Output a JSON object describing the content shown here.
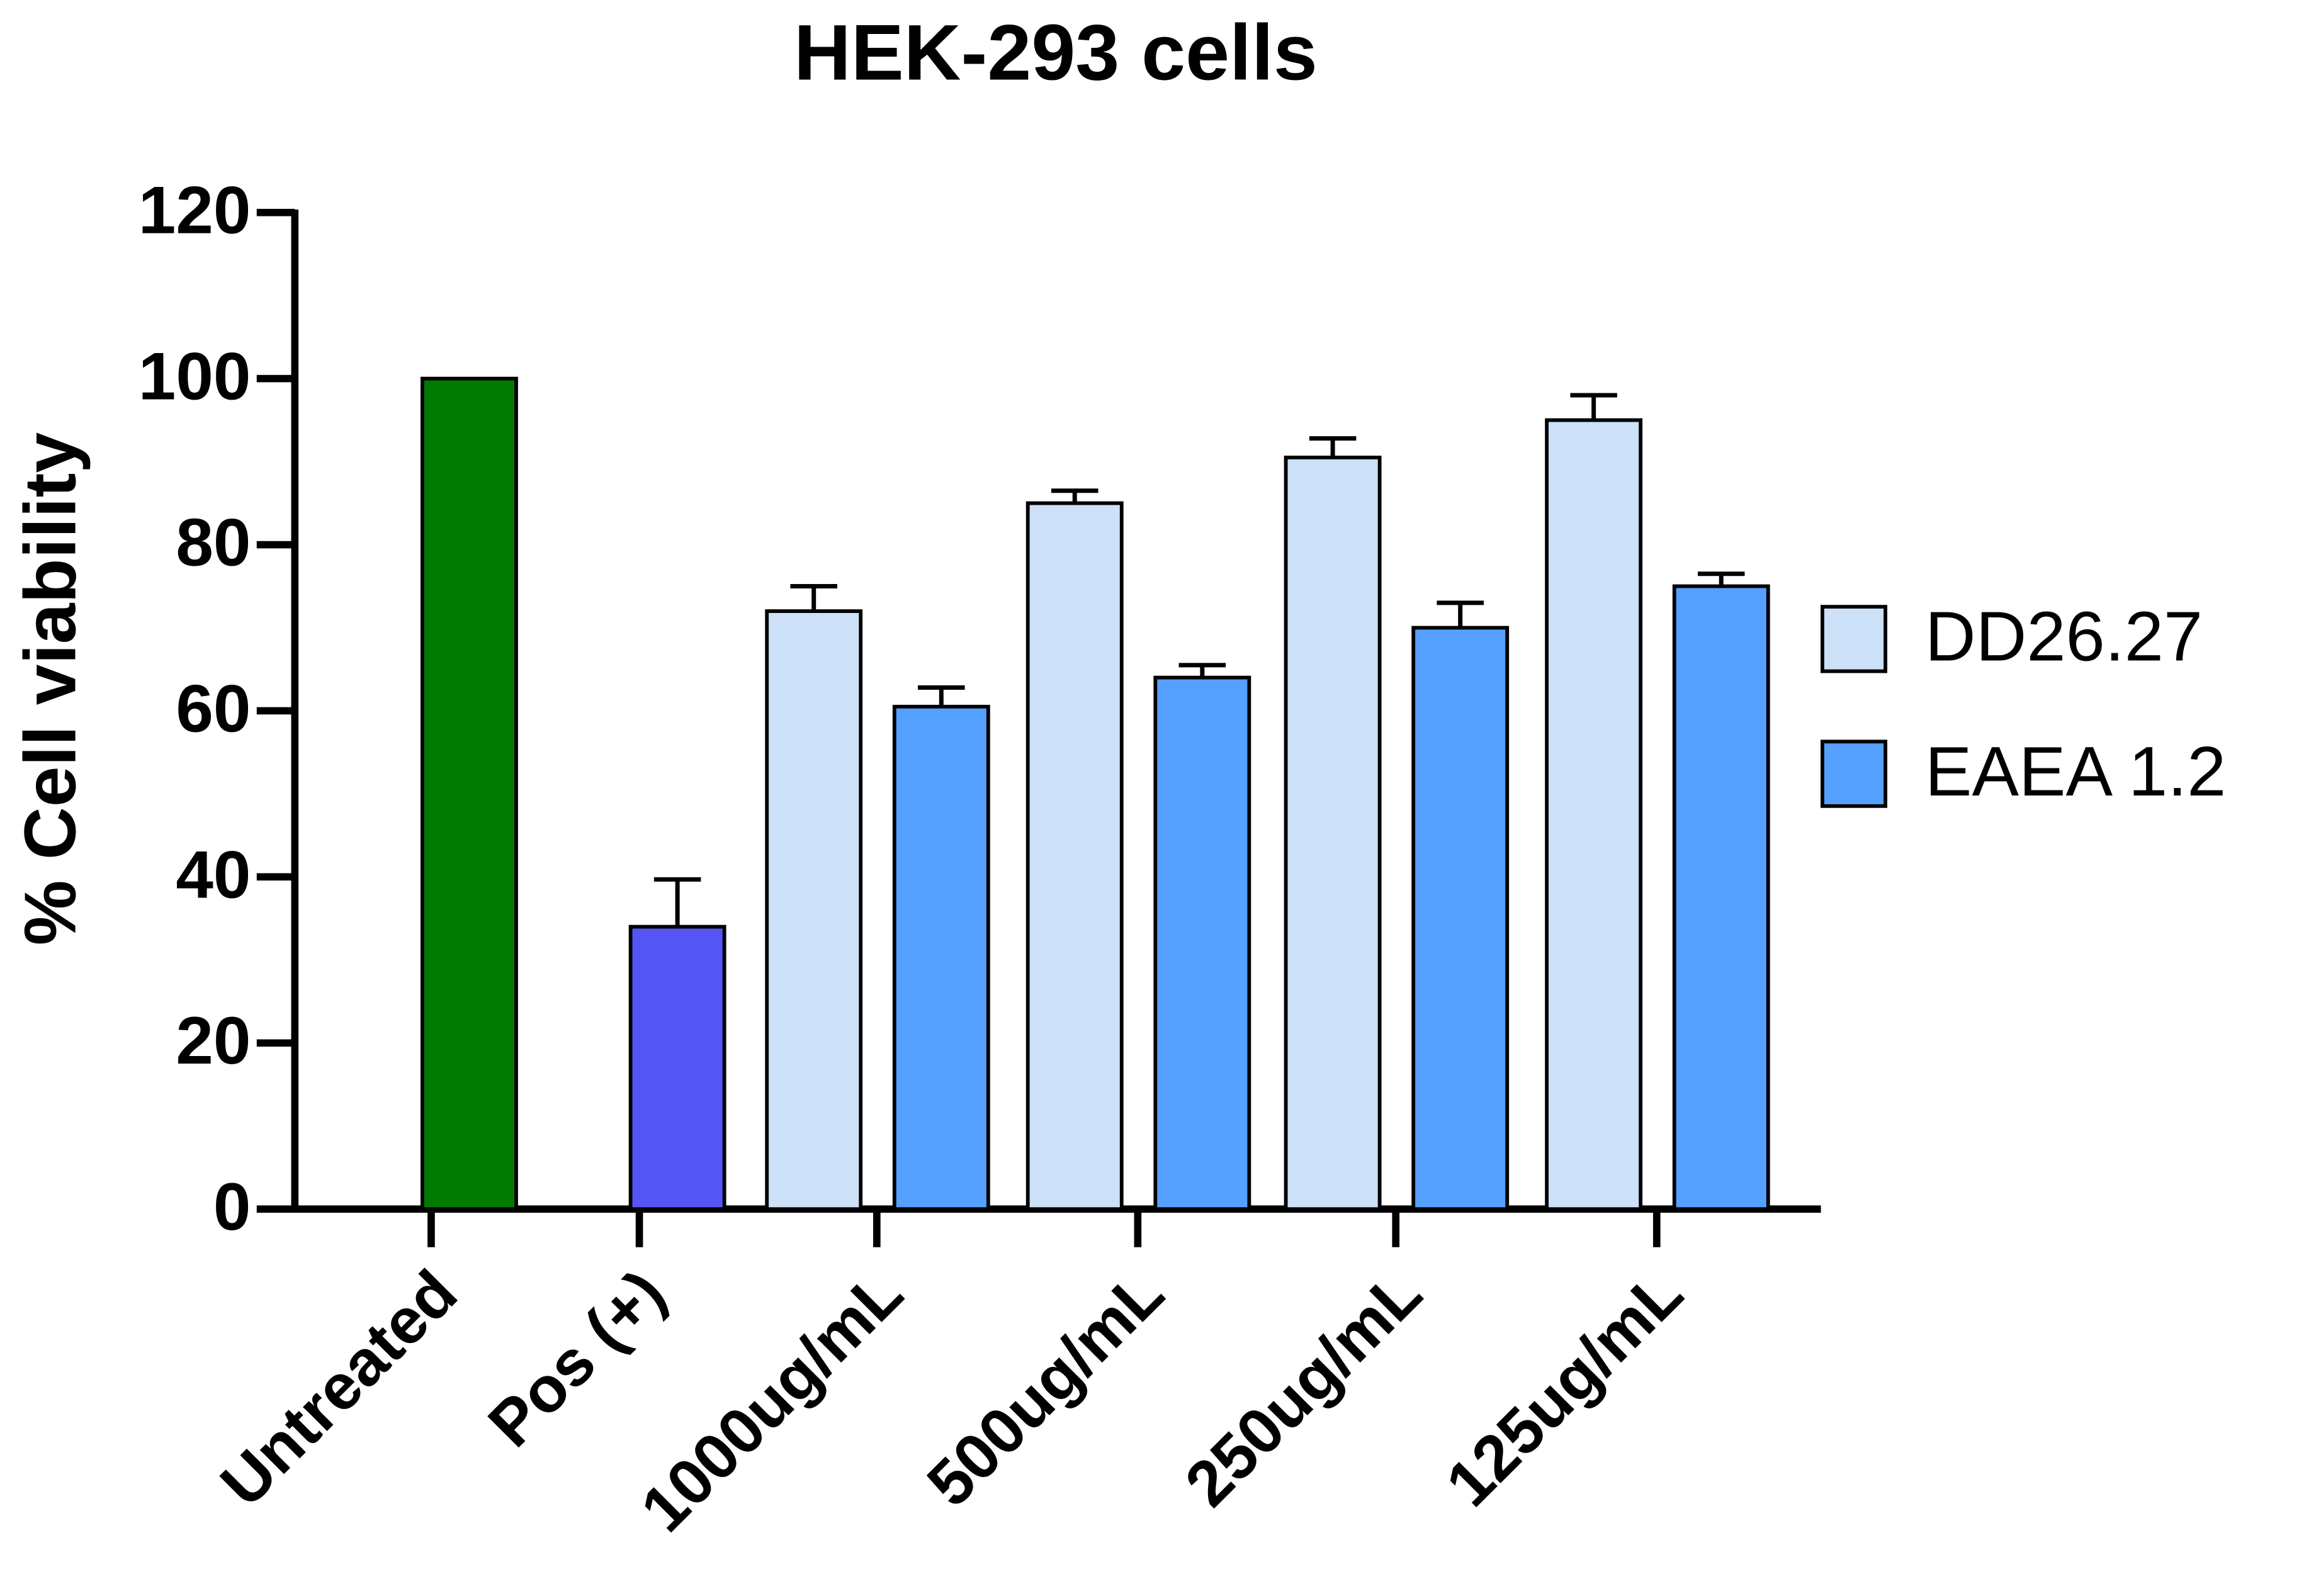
{
  "chart_data": {
    "type": "bar",
    "title": "HEK-293 cells",
    "y_label": "% Cell viability",
    "categories": [
      "Untreated",
      "Pos (+)",
      "1000ug/mL",
      "500ug/mL",
      "250ug/mL",
      "125ug/mL"
    ],
    "values": [
      100,
      34,
      null,
      null,
      null,
      null
    ],
    "errors": [
      null,
      5.7,
      null,
      null,
      null,
      null
    ],
    "colors": [
      "#007a00",
      "#5555f5",
      null,
      null,
      null,
      null
    ],
    "series": [
      {
        "name": "DD26.27",
        "color": "#cce0f8",
        "values": [
          null,
          null,
          72,
          85,
          90.5,
          95
        ],
        "errors": [
          null,
          null,
          3,
          1.5,
          2.3,
          3
        ]
      },
      {
        "name": "EAEA 1.2",
        "color": "#55a0ff",
        "values": [
          null,
          null,
          60.5,
          64,
          70,
          75
        ],
        "errors": [
          null,
          null,
          2.3,
          1.5,
          3,
          1.5
        ]
      }
    ],
    "ylim": [
      0,
      120
    ],
    "yticks": [
      0,
      20,
      40,
      60,
      80,
      100,
      120
    ],
    "legend": "right"
  }
}
